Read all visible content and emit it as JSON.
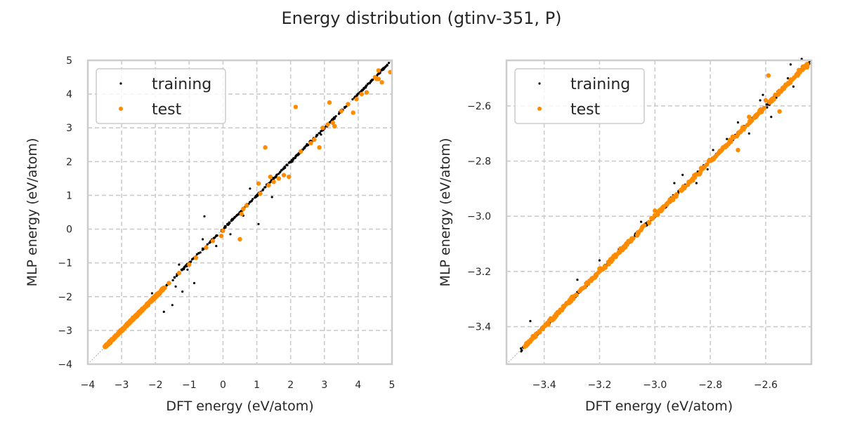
{
  "figure": {
    "suptitle": "Energy distribution (gtinv-351, P)"
  },
  "colors": {
    "training": "#000000",
    "test": "#ff8c00",
    "grid": "#cccccc",
    "frame": "#cccccc",
    "diagonal": "#999999",
    "text": "#262626"
  },
  "chart_data": [
    {
      "type": "scatter",
      "panel": "left",
      "title": "",
      "xlabel": "DFT energy (eV/atom)",
      "ylabel": "MLP energy (eV/atom)",
      "xlim": [
        -4,
        5
      ],
      "ylim": [
        -4,
        5
      ],
      "xticks": [
        -4,
        -3,
        -2,
        -1,
        0,
        1,
        2,
        3,
        4,
        5
      ],
      "yticks": [
        -4,
        -3,
        -2,
        -1,
        0,
        1,
        2,
        3,
        4,
        5
      ],
      "xtick_labels": [
        "−4",
        "−3",
        "−2",
        "−1",
        "0",
        "1",
        "2",
        "3",
        "4",
        "5"
      ],
      "ytick_labels": [
        "−4",
        "−3",
        "−2",
        "−1",
        "0",
        "1",
        "2",
        "3",
        "4",
        "5"
      ],
      "grid": true,
      "legend": {
        "placement": "upper-left",
        "entries": [
          "training",
          "test"
        ]
      },
      "reference_line": "y = x",
      "series": [
        {
          "name": "training",
          "dense_band": {
            "x_from": -3.5,
            "x_to": 4.95,
            "spread": 0.04
          },
          "outliers": [
            [
              -0.6,
              -0.3
            ],
            [
              -0.55,
              0.38
            ],
            [
              0.22,
              -0.15
            ],
            [
              0.6,
              0.4
            ],
            [
              1.05,
              0.15
            ],
            [
              1.45,
              0.95
            ],
            [
              -2.1,
              -1.9
            ],
            [
              -1.5,
              -2.25
            ],
            [
              -1.4,
              -1.7
            ],
            [
              -1.05,
              -1.2
            ],
            [
              -0.85,
              -1.6
            ],
            [
              -1.3,
              -1.05
            ],
            [
              -0.2,
              -0.5
            ],
            [
              0.8,
              1.2
            ],
            [
              2.05,
              2.0
            ],
            [
              2.9,
              2.8
            ],
            [
              -1.75,
              -2.45
            ],
            [
              -1.2,
              -1.85
            ]
          ]
        },
        {
          "name": "test",
          "dense_band": {
            "x_from": -3.5,
            "x_to": -1.7,
            "spread": 0.05
          },
          "points": [
            [
              -1.6,
              -1.6
            ],
            [
              -1.3,
              -1.3
            ],
            [
              -1.0,
              -1.05
            ],
            [
              -0.8,
              -0.85
            ],
            [
              -0.5,
              -0.55
            ],
            [
              -0.3,
              -0.35
            ],
            [
              -0.05,
              -0.2
            ],
            [
              0.0,
              -0.05
            ],
            [
              0.5,
              -0.3
            ],
            [
              0.6,
              0.6
            ],
            [
              0.7,
              0.7
            ],
            [
              0.55,
              0.45
            ],
            [
              1.05,
              1.35
            ],
            [
              1.1,
              1.05
            ],
            [
              1.25,
              2.42
            ],
            [
              1.35,
              1.3
            ],
            [
              1.4,
              1.55
            ],
            [
              1.5,
              1.4
            ],
            [
              1.65,
              1.5
            ],
            [
              1.8,
              1.6
            ],
            [
              1.95,
              1.55
            ],
            [
              2.15,
              3.62
            ],
            [
              2.3,
              2.3
            ],
            [
              2.6,
              2.55
            ],
            [
              2.7,
              2.65
            ],
            [
              2.85,
              2.42
            ],
            [
              2.95,
              3.0
            ],
            [
              3.1,
              3.1
            ],
            [
              3.15,
              3.75
            ],
            [
              3.25,
              3.15
            ],
            [
              3.3,
              3.05
            ],
            [
              3.5,
              3.5
            ],
            [
              3.7,
              3.7
            ],
            [
              3.85,
              3.45
            ],
            [
              3.95,
              3.85
            ],
            [
              4.1,
              4.0
            ],
            [
              4.25,
              4.05
            ],
            [
              4.5,
              4.5
            ],
            [
              4.55,
              4.45
            ],
            [
              4.6,
              4.7
            ],
            [
              4.7,
              4.35
            ],
            [
              4.6,
              4.45
            ],
            [
              4.95,
              4.65
            ]
          ]
        }
      ]
    },
    {
      "type": "scatter",
      "panel": "right",
      "title": "",
      "xlabel": "DFT energy (eV/atom)",
      "ylabel": "MLP energy (eV/atom)",
      "xlim": [
        -3.536,
        -2.435
      ],
      "ylim": [
        -3.536,
        -2.435
      ],
      "xticks": [
        -3.4,
        -3.2,
        -3.0,
        -2.8,
        -2.6
      ],
      "yticks": [
        -3.4,
        -3.2,
        -3.0,
        -2.8,
        -2.6
      ],
      "xtick_labels": [
        "−3.4",
        "−3.2",
        "−3.0",
        "−2.8",
        "−2.6"
      ],
      "ytick_labels": [
        "−3.4",
        "−3.2",
        "−3.0",
        "−2.8",
        "−2.6"
      ],
      "grid": true,
      "legend": {
        "placement": "upper-left",
        "entries": [
          "training",
          "test"
        ]
      },
      "reference_line": "y = x",
      "series": [
        {
          "name": "training",
          "dense_band": {
            "x_from": -3.485,
            "x_to": -2.44,
            "spread": 0.012
          },
          "outliers": [
            [
              -3.45,
              -3.38
            ],
            [
              -3.28,
              -3.23
            ],
            [
              -3.2,
              -3.16
            ],
            [
              -3.13,
              -3.12
            ],
            [
              -2.93,
              -2.88
            ],
            [
              -2.9,
              -2.85
            ],
            [
              -2.81,
              -2.83
            ],
            [
              -2.74,
              -2.72
            ],
            [
              -2.7,
              -2.66
            ],
            [
              -2.66,
              -2.7
            ],
            [
              -2.62,
              -2.58
            ],
            [
              -2.61,
              -2.56
            ],
            [
              -2.58,
              -2.64
            ],
            [
              -2.52,
              -2.5
            ],
            [
              -2.51,
              -2.45
            ],
            [
              -2.47,
              -2.43
            ],
            [
              -2.5,
              -2.53
            ],
            [
              -2.79,
              -2.76
            ],
            [
              -2.85,
              -2.88
            ],
            [
              -3.05,
              -3.02
            ]
          ]
        },
        {
          "name": "test",
          "dense_band": {
            "x_from": -3.47,
            "x_to": -2.44,
            "spread": 0.01
          },
          "points": [
            [
              -2.59,
              -2.49
            ],
            [
              -2.55,
              -2.62
            ],
            [
              -2.7,
              -2.76
            ],
            [
              -2.66,
              -2.64
            ],
            [
              -2.6,
              -2.58
            ],
            [
              -2.52,
              -2.52
            ],
            [
              -2.48,
              -2.47
            ],
            [
              -2.45,
              -2.46
            ],
            [
              -3.0,
              -2.98
            ],
            [
              -3.2,
              -3.19
            ]
          ]
        }
      ]
    }
  ]
}
